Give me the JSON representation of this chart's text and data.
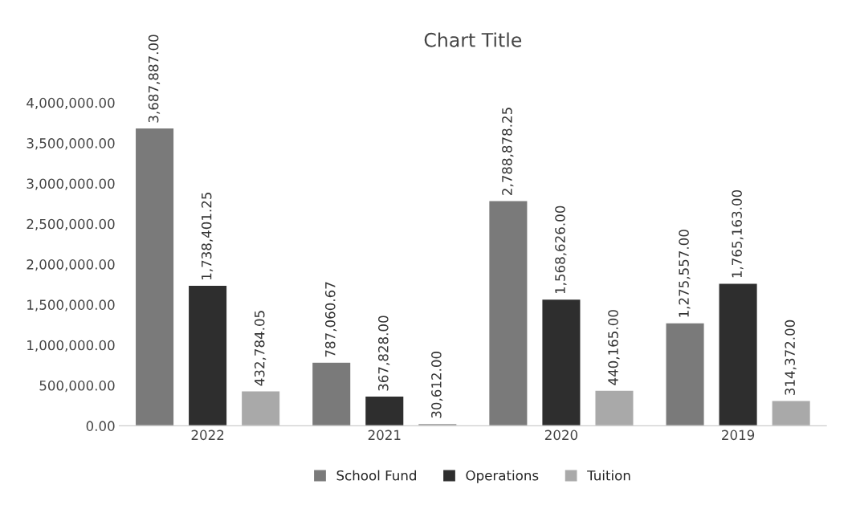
{
  "chart_data": {
    "type": "bar",
    "title": "Chart Title",
    "categories": [
      "2022",
      "2021",
      "2020",
      "2019"
    ],
    "series": [
      {
        "name": "School Fund",
        "color": "#7a7a7a",
        "values": [
          3687887.0,
          787060.67,
          2788878.25,
          1275557.0
        ],
        "value_labels": [
          "3,687,887.00",
          "787,060.67",
          "2,788,878.25",
          "1,275,557.00"
        ]
      },
      {
        "name": "Operations",
        "color": "#2e2e2e",
        "values": [
          1738401.25,
          367828.0,
          1568626.0,
          1765163.0
        ],
        "value_labels": [
          "1,738,401.25",
          "367,828.00",
          "1,568,626.00",
          "1,765,163.00"
        ]
      },
      {
        "name": "Tuition",
        "color": "#a9a9a9",
        "values": [
          432784.05,
          30612.0,
          440165.0,
          314372.0
        ],
        "value_labels": [
          "432,784.05",
          "30,612.00",
          "440,165.00",
          "314,372.00"
        ]
      }
    ],
    "ylim": [
      0,
      4000000
    ],
    "yticks": [
      {
        "value": 0,
        "label": "0.00"
      },
      {
        "value": 500000,
        "label": "500,000.00"
      },
      {
        "value": 1000000,
        "label": "1,000,000.00"
      },
      {
        "value": 1500000,
        "label": "1,500,000.00"
      },
      {
        "value": 2000000,
        "label": "2,000,000.00"
      },
      {
        "value": 2500000,
        "label": "2,500,000.00"
      },
      {
        "value": 3000000,
        "label": "3,000,000.00"
      },
      {
        "value": 3500000,
        "label": "3,500,000.00"
      },
      {
        "value": 4000000,
        "label": "4,000,000.00"
      }
    ],
    "legend": "bottom"
  }
}
